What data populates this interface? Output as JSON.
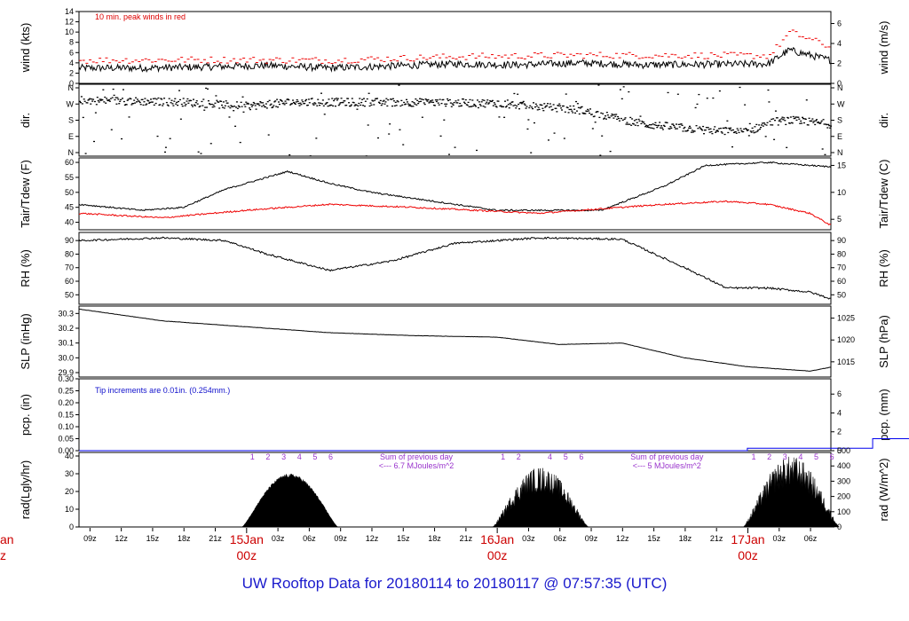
{
  "title": "UW Rooftop Data for 20180114  to  20180117 @ 07:57:35  (UTC)",
  "colors": {
    "air": "#000000",
    "dew": "#ee0000",
    "peak": "#ee0000",
    "precip": "#0000ee",
    "note_purple": "#9933cc",
    "date": "#cc0000",
    "title": "#1a1acc"
  },
  "chart_data": {
    "type": "line",
    "x_time": {
      "start": "2018-01-14 07:57",
      "end": "2018-01-17 07:57",
      "hour_ticks": [
        "09z",
        "12z",
        "15z",
        "18z",
        "21z",
        "03z",
        "06z",
        "09z",
        "12z",
        "15z",
        "18z",
        "21z",
        "03z",
        "06z",
        "09z",
        "12z",
        "15z",
        "18z",
        "21z",
        "03z",
        "06z"
      ],
      "date_labels": [
        {
          "day": "15Jan",
          "hour": "00z"
        },
        {
          "day": "16Jan",
          "hour": "00z"
        },
        {
          "day": "17Jan",
          "hour": "00z"
        }
      ],
      "left_clipped_label": {
        "day": "an",
        "hour": "z"
      }
    },
    "panels": [
      {
        "name": "wind",
        "ylabel_left": "wind (kts)",
        "ylabel_right": "wind (m/s)",
        "yticks_left": [
          "0",
          "2",
          "4",
          "6",
          "8",
          "10",
          "12",
          "14"
        ],
        "yticks_right": [
          "0",
          "2",
          "4",
          "6"
        ],
        "ylim": [
          0,
          14
        ],
        "annotation": "10 min. peak winds in red",
        "series": [
          {
            "name": "wind",
            "color": "#000000",
            "keypoints": [
              [
                0,
                3
              ],
              [
                6,
                3
              ],
              [
                12,
                3.2
              ],
              [
                18,
                3.5
              ],
              [
                24,
                3
              ],
              [
                30,
                3.4
              ],
              [
                36,
                3.8
              ],
              [
                42,
                3.6
              ],
              [
                48,
                4
              ],
              [
                54,
                3.6
              ],
              [
                66,
                3.8
              ],
              [
                68,
                6.5
              ],
              [
                72,
                4.5
              ],
              [
                76,
                5
              ],
              [
                82,
                6
              ],
              [
                86,
                6.5
              ],
              [
                90,
                7
              ],
              [
                96,
                8.5
              ],
              [
                100,
                7
              ],
              [
                104,
                6
              ],
              [
                110,
                4
              ],
              [
                116,
                3.2
              ],
              [
                122,
                3
              ]
            ]
          },
          {
            "name": "10 min. peak winds",
            "color": "#ee0000",
            "keypoints": [
              [
                0,
                4.5
              ],
              [
                12,
                4.6
              ],
              [
                24,
                4.5
              ],
              [
                36,
                5.2
              ],
              [
                48,
                5.5
              ],
              [
                66,
                5.4
              ],
              [
                68,
                10
              ],
              [
                72,
                7
              ],
              [
                80,
                8.5
              ],
              [
                90,
                10.5
              ],
              [
                96,
                13
              ],
              [
                100,
                11
              ],
              [
                104,
                9
              ],
              [
                110,
                6
              ],
              [
                116,
                5
              ],
              [
                122,
                4.5
              ]
            ]
          }
        ]
      },
      {
        "name": "direction",
        "ylabel_left": "dir.",
        "ylabel_right": "dir.",
        "yticks_left": [
          "N",
          "W",
          "S",
          "E",
          "N"
        ],
        "yticks_right": [
          "N",
          "W",
          "S",
          "E",
          "N"
        ],
        "ylim": [
          0,
          360
        ],
        "series": [
          {
            "name": "direction",
            "color": "#000000",
            "keypoints": [
              [
                0,
                280
              ],
              [
                10,
                270
              ],
              [
                16,
                250
              ],
              [
                20,
                270
              ],
              [
                30,
                270
              ],
              [
                40,
                265
              ],
              [
                48,
                230
              ],
              [
                54,
                160
              ],
              [
                60,
                130
              ],
              [
                64,
                120
              ],
              [
                66,
                170
              ],
              [
                68,
                180
              ],
              [
                72,
                160
              ],
              [
                78,
                165
              ],
              [
                82,
                190
              ],
              [
                90,
                220
              ],
              [
                96,
                200
              ],
              [
                100,
                215
              ],
              [
                106,
                180
              ],
              [
                110,
                110
              ],
              [
                116,
                110
              ],
              [
                120,
                150
              ],
              [
                122,
                245
              ]
            ]
          }
        ]
      },
      {
        "name": "temperature",
        "ylabel_left": "Tair/Tdew (F)",
        "ylabel_right": "Tair/Tdew (C)",
        "yticks_left": [
          "40",
          "45",
          "50",
          "55",
          "60"
        ],
        "yticks_right": [
          "5",
          "10",
          "15"
        ],
        "ylim": [
          37.5,
          61.5
        ],
        "series": [
          {
            "name": "Tair",
            "color": "#000000",
            "keypoints": [
              [
                0,
                46
              ],
              [
                6,
                44
              ],
              [
                10,
                45
              ],
              [
                14,
                51
              ],
              [
                20,
                57
              ],
              [
                24,
                53
              ],
              [
                28,
                50
              ],
              [
                32,
                48
              ],
              [
                40,
                44
              ],
              [
                50,
                44
              ],
              [
                56,
                52
              ],
              [
                60,
                59
              ],
              [
                66,
                60
              ],
              [
                72,
                58.5
              ],
              [
                78,
                55
              ],
              [
                84,
                51
              ],
              [
                90,
                50
              ],
              [
                96,
                51
              ],
              [
                100,
                53
              ],
              [
                106,
                55
              ],
              [
                110,
                54
              ],
              [
                116,
                50
              ],
              [
                122,
                48
              ]
            ]
          },
          {
            "name": "Tdew",
            "color": "#ee0000",
            "keypoints": [
              [
                0,
                43
              ],
              [
                8,
                41.5
              ],
              [
                16,
                44
              ],
              [
                24,
                46
              ],
              [
                32,
                45
              ],
              [
                44,
                43
              ],
              [
                52,
                45
              ],
              [
                56,
                46
              ],
              [
                62,
                47
              ],
              [
                66,
                46
              ],
              [
                70,
                43
              ],
              [
                72,
                39
              ],
              [
                76,
                43
              ],
              [
                82,
                46
              ],
              [
                88,
                48
              ],
              [
                96,
                48.5
              ],
              [
                102,
                47
              ],
              [
                106,
                44
              ],
              [
                112,
                41
              ],
              [
                118,
                42
              ],
              [
                120,
                39
              ],
              [
                122,
                42
              ]
            ]
          }
        ]
      },
      {
        "name": "humidity",
        "ylabel_left": "RH (%)",
        "ylabel_right": "RH (%)",
        "yticks_left": [
          "50",
          "60",
          "70",
          "80",
          "90"
        ],
        "yticks_right": [
          "50",
          "60",
          "70",
          "80",
          "90"
        ],
        "ylim": [
          43,
          96
        ],
        "series": [
          {
            "name": "RH",
            "color": "#000000",
            "keypoints": [
              [
                0,
                90
              ],
              [
                8,
                92
              ],
              [
                14,
                90
              ],
              [
                18,
                80
              ],
              [
                24,
                68
              ],
              [
                30,
                75
              ],
              [
                36,
                88
              ],
              [
                44,
                92
              ],
              [
                52,
                91
              ],
              [
                58,
                70
              ],
              [
                62,
                55
              ],
              [
                66,
                55
              ],
              [
                70,
                52
              ],
              [
                72,
                47
              ],
              [
                76,
                60
              ],
              [
                80,
                80
              ],
              [
                84,
                92
              ],
              [
                90,
                92
              ],
              [
                96,
                90
              ],
              [
                100,
                72
              ],
              [
                106,
                60
              ],
              [
                110,
                58
              ],
              [
                116,
                70
              ],
              [
                120,
                72
              ],
              [
                122,
                78
              ]
            ]
          }
        ]
      },
      {
        "name": "pressure",
        "ylabel_left": "SLP (inHg)",
        "ylabel_right": "SLP (hPa)",
        "yticks_left": [
          "29.9",
          "30.0",
          "30.1",
          "30.2",
          "30.3"
        ],
        "yticks_right": [
          "1015",
          "1020",
          "1025"
        ],
        "ylim": [
          29.87,
          30.35
        ],
        "series": [
          {
            "name": "SLP",
            "color": "#000000",
            "keypoints": [
              [
                0,
                30.33
              ],
              [
                8,
                30.25
              ],
              [
                16,
                30.21
              ],
              [
                24,
                30.17
              ],
              [
                32,
                30.15
              ],
              [
                40,
                30.14
              ],
              [
                46,
                30.09
              ],
              [
                52,
                30.1
              ],
              [
                58,
                30.0
              ],
              [
                64,
                29.94
              ],
              [
                70,
                29.91
              ],
              [
                76,
                29.99
              ],
              [
                82,
                30.06
              ],
              [
                90,
                30.13
              ],
              [
                98,
                30.21
              ],
              [
                106,
                30.27
              ],
              [
                114,
                30.29
              ],
              [
                120,
                30.22
              ],
              [
                122,
                30.2
              ]
            ]
          }
        ]
      },
      {
        "name": "precipitation",
        "ylabel_left": "pcp. (in)",
        "ylabel_right": "pcp. (mm)",
        "yticks_left": [
          "0.00",
          "0.05",
          "0.10",
          "0.15",
          "0.20",
          "0.25",
          "0.30"
        ],
        "yticks_right": [
          "0",
          "2",
          "4",
          "6"
        ],
        "ylim": [
          0,
          0.3
        ],
        "annotation": "Tip increments are 0.01in. (0.254mm.)",
        "series": [
          {
            "name": "precipitation",
            "color": "#0000ee",
            "keypoints": [
              [
                0,
                0
              ],
              [
                64,
                0
              ],
              [
                64,
                0.01
              ],
              [
                72,
                0.01
              ],
              [
                76,
                0.05
              ],
              [
                80,
                0.13
              ],
              [
                84,
                0.22
              ],
              [
                88,
                0.25
              ],
              [
                92,
                0.28
              ],
              [
                96,
                0.29
              ],
              [
                100,
                0.3
              ],
              [
                122,
                0.3
              ]
            ]
          }
        ]
      },
      {
        "name": "radiation",
        "ylabel_left": "rad(Lgly/hr)",
        "ylabel_right": "rad (W/m^2)",
        "yticks_left": [
          "0",
          "10",
          "20",
          "30",
          "40"
        ],
        "yticks_right": [
          "0",
          "100",
          "200",
          "300",
          "400",
          "500"
        ],
        "ylim": [
          0,
          42
        ],
        "hour_markers": [
          "1",
          "2",
          "3",
          "4",
          "5",
          "6"
        ],
        "daily_notes": [
          {
            "text1": "Sum of previous day",
            "text2": "<--- 6.7 MJoules/m^2"
          },
          {
            "text1": "Sum of previous day",
            "text2": "<--- 5 MJoules/m^2"
          }
        ],
        "series": [
          {
            "name": "solar radiation",
            "color": "#000000",
            "days": [
              {
                "center": 20.2,
                "half_width": 4.6,
                "peak": 30,
                "spiky": false
              },
              {
                "center": 44.2,
                "half_width": 4.6,
                "peak": 34,
                "spiky": true
              },
              {
                "center": 68.2,
                "half_width": 4.6,
                "peak": 40,
                "spiky": true
              }
            ]
          }
        ]
      }
    ]
  }
}
